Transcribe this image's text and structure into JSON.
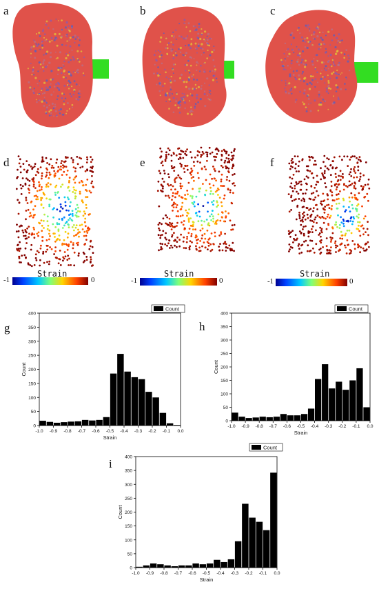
{
  "panels": {
    "a": "a",
    "b": "b",
    "c": "c",
    "d": "d",
    "e": "e",
    "f": "f",
    "g": "g",
    "h": "h",
    "i": "i"
  },
  "colorbars": [
    {
      "title": "Strain",
      "min_label": "-1",
      "max_label": "0"
    },
    {
      "title": "Strain",
      "min_label": "-1",
      "max_label": "0"
    },
    {
      "title": "Strain",
      "min_label": "-1",
      "max_label": "0"
    }
  ],
  "colors": {
    "model_body": "#e0524a",
    "model_spots_purple": "#8a5bb0",
    "model_spots_yellow": "#e3c43a",
    "probe": "#33dd22",
    "bar": "#000000",
    "colormap": [
      "#00008f",
      "#0040ff",
      "#00c8ff",
      "#7dff7a",
      "#ffd500",
      "#ff4000",
      "#800000"
    ]
  },
  "chart_data": [
    {
      "type": "bar",
      "panel": "g",
      "x": [
        -0.975,
        -0.925,
        -0.875,
        -0.825,
        -0.775,
        -0.725,
        -0.675,
        -0.625,
        -0.575,
        -0.525,
        -0.475,
        -0.425,
        -0.375,
        -0.325,
        -0.275,
        -0.225,
        -0.175,
        -0.125,
        -0.075,
        -0.025
      ],
      "values": [
        17,
        13,
        10,
        12,
        14,
        15,
        20,
        18,
        20,
        30,
        185,
        255,
        192,
        172,
        165,
        120,
        100,
        45,
        8,
        2
      ],
      "xlabel": "Strain",
      "ylabel": "Count",
      "xlim": [
        -1.0,
        0.0
      ],
      "ylim": [
        0,
        400
      ],
      "xticks": [
        "-1.0",
        "-0.9",
        "-0.8",
        "-0.7",
        "-0.6",
        "-0.5",
        "-0.4",
        "-0.3",
        "-0.2",
        "-0.1",
        "0.0"
      ],
      "yticks": [
        "0",
        "50",
        "100",
        "150",
        "200",
        "250",
        "300",
        "350",
        "400"
      ],
      "legend": "Count",
      "legend_position": "top-right"
    },
    {
      "type": "bar",
      "panel": "h",
      "x": [
        -0.975,
        -0.925,
        -0.875,
        -0.825,
        -0.775,
        -0.725,
        -0.675,
        -0.625,
        -0.575,
        -0.525,
        -0.475,
        -0.425,
        -0.375,
        -0.325,
        -0.275,
        -0.225,
        -0.175,
        -0.125,
        -0.075,
        -0.025
      ],
      "values": [
        30,
        15,
        10,
        12,
        15,
        13,
        15,
        25,
        20,
        20,
        25,
        45,
        155,
        210,
        120,
        145,
        115,
        150,
        195,
        50
      ],
      "xlabel": "Strain",
      "ylabel": "Count",
      "xlim": [
        -1.0,
        0.0
      ],
      "ylim": [
        0,
        400
      ],
      "xticks": [
        "-1.0",
        "-0.9",
        "-0.8",
        "-0.7",
        "-0.6",
        "-0.5",
        "-0.4",
        "-0.3",
        "-0.2",
        "-0.1",
        "0.0"
      ],
      "yticks": [
        "0",
        "50",
        "100",
        "150",
        "200",
        "250",
        "300",
        "350",
        "400"
      ],
      "legend": "Count",
      "legend_position": "top-right"
    },
    {
      "type": "bar",
      "panel": "i",
      "x": [
        -0.975,
        -0.925,
        -0.875,
        -0.825,
        -0.775,
        -0.725,
        -0.675,
        -0.625,
        -0.575,
        -0.525,
        -0.475,
        -0.425,
        -0.375,
        -0.325,
        -0.275,
        -0.225,
        -0.175,
        -0.125,
        -0.075,
        -0.025
      ],
      "values": [
        3,
        8,
        15,
        12,
        8,
        5,
        8,
        8,
        15,
        12,
        15,
        28,
        20,
        30,
        95,
        230,
        180,
        165,
        135,
        342
      ],
      "xlabel": "Strain",
      "ylabel": "Count",
      "xlim": [
        -1.0,
        0.0
      ],
      "ylim": [
        0,
        400
      ],
      "xticks": [
        "-1.0",
        "-0.9",
        "-0.8",
        "-0.7",
        "-0.6",
        "-0.5",
        "-0.4",
        "-0.3",
        "-0.2",
        "-0.1",
        "0.0"
      ],
      "yticks": [
        "0",
        "50",
        "100",
        "150",
        "200",
        "250",
        "300",
        "350",
        "400"
      ],
      "legend": "Count",
      "legend_position": "top-right"
    }
  ]
}
